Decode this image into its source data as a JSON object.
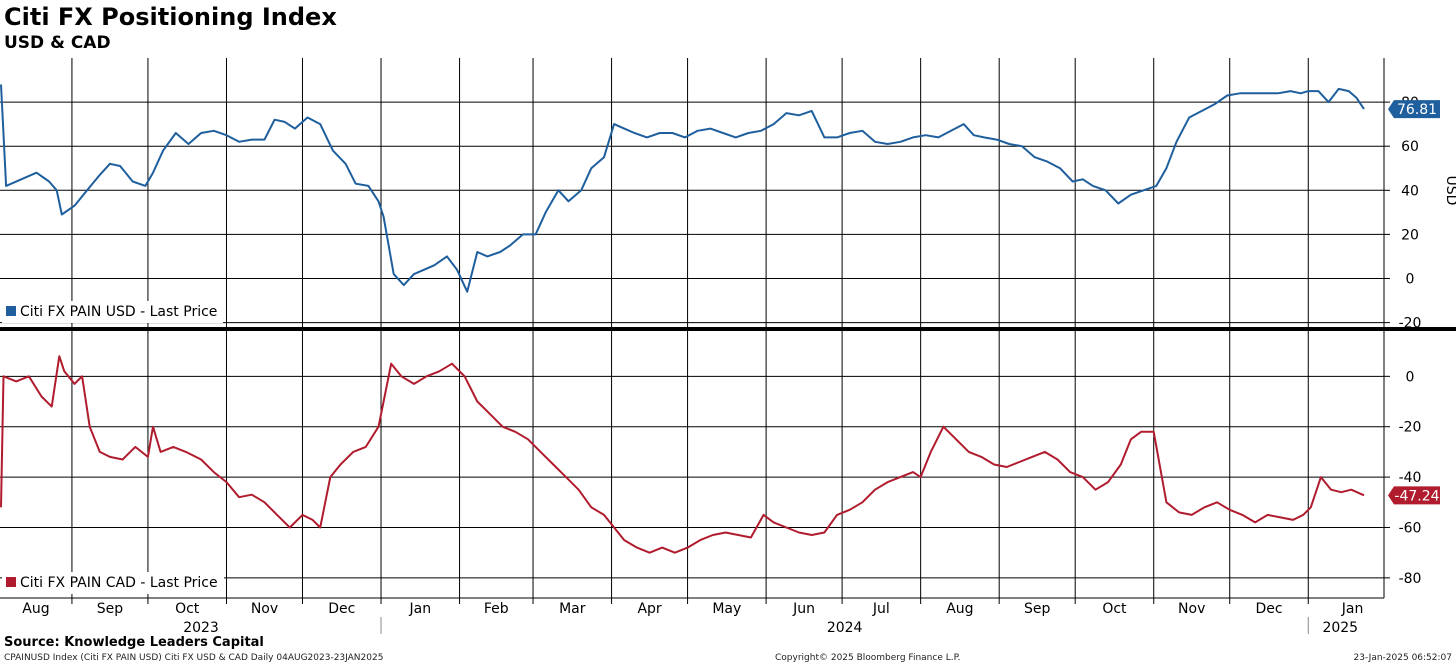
{
  "title": "Citi FX Positioning Index",
  "subtitle": "USD & CAD",
  "source": "Source: Knowledge Leaders Capital",
  "footer": {
    "left": "CPAINUSD Index (Citi FX PAIN USD) Citi FX USD & CAD  Daily 04AUG2023-23JAN2025",
    "center": "Copyright© 2025 Bloomberg Finance L.P.",
    "right": "23-Jan-2025 06:52:07"
  },
  "x_axis": {
    "months": [
      "Aug",
      "Sep",
      "Oct",
      "Nov",
      "Dec",
      "Jan",
      "Feb",
      "Mar",
      "Apr",
      "May",
      "Jun",
      "Jul",
      "Aug",
      "Sep",
      "Oct",
      "Nov",
      "Dec",
      "Jan"
    ],
    "years": [
      "2023",
      "2024",
      "2025"
    ]
  },
  "chart_data": [
    {
      "type": "line",
      "panel": "top",
      "ylabel": "USD",
      "ylim": [
        -22,
        100
      ],
      "yticks": [
        -20,
        0,
        20,
        40,
        60,
        80
      ],
      "ytick_labels": [
        "-20",
        "0",
        "20",
        "40",
        "60",
        "80"
      ],
      "grid": true,
      "last_value_label": "76.81",
      "color": "#1f5f9e",
      "series": [
        {
          "name": "Citi FX PAIN USD - Last Price",
          "x": [
            "2023-08-04",
            "2023-08-06",
            "2023-08-12",
            "2023-08-18",
            "2023-08-23",
            "2023-08-26",
            "2023-08-28",
            "2023-09-02",
            "2023-09-07",
            "2023-09-12",
            "2023-09-16",
            "2023-09-20",
            "2023-09-25",
            "2023-09-30",
            "2023-10-03",
            "2023-10-07",
            "2023-10-12",
            "2023-10-17",
            "2023-10-22",
            "2023-10-27",
            "2023-11-01",
            "2023-11-06",
            "2023-11-11",
            "2023-11-16",
            "2023-11-20",
            "2023-11-24",
            "2023-11-28",
            "2023-12-03",
            "2023-12-08",
            "2023-12-13",
            "2023-12-18",
            "2023-12-22",
            "2023-12-27",
            "2023-12-31",
            "2024-01-02",
            "2024-01-06",
            "2024-01-10",
            "2024-01-14",
            "2024-01-18",
            "2024-01-22",
            "2024-01-27",
            "2024-01-31",
            "2024-02-04",
            "2024-02-08",
            "2024-02-12",
            "2024-02-17",
            "2024-02-21",
            "2024-02-26",
            "2024-03-02",
            "2024-03-06",
            "2024-03-11",
            "2024-03-15",
            "2024-03-20",
            "2024-03-24",
            "2024-03-29",
            "2024-04-02",
            "2024-04-06",
            "2024-04-10",
            "2024-04-15",
            "2024-04-20",
            "2024-04-25",
            "2024-04-30",
            "2024-05-05",
            "2024-05-10",
            "2024-05-15",
            "2024-05-20",
            "2024-05-25",
            "2024-05-30",
            "2024-06-04",
            "2024-06-09",
            "2024-06-14",
            "2024-06-19",
            "2024-06-24",
            "2024-06-29",
            "2024-07-04",
            "2024-07-09",
            "2024-07-14",
            "2024-07-19",
            "2024-07-24",
            "2024-07-29",
            "2024-08-03",
            "2024-08-08",
            "2024-08-13",
            "2024-08-18",
            "2024-08-22",
            "2024-08-26",
            "2024-08-31",
            "2024-09-05",
            "2024-09-10",
            "2024-09-15",
            "2024-09-20",
            "2024-09-25",
            "2024-09-30",
            "2024-10-04",
            "2024-10-08",
            "2024-10-13",
            "2024-10-18",
            "2024-10-23",
            "2024-10-28",
            "2024-11-02",
            "2024-11-06",
            "2024-11-10",
            "2024-11-15",
            "2024-11-20",
            "2024-11-25",
            "2024-11-30",
            "2024-12-05",
            "2024-12-10",
            "2024-12-15",
            "2024-12-20",
            "2024-12-25",
            "2024-12-29",
            "2025-01-01",
            "2025-01-05",
            "2025-01-09",
            "2025-01-13",
            "2025-01-17",
            "2025-01-20",
            "2025-01-23"
          ],
          "values": [
            88,
            42,
            45,
            48,
            44,
            40,
            29,
            33,
            40,
            47,
            52,
            51,
            44,
            42,
            48,
            58,
            66,
            61,
            66,
            67,
            65,
            62,
            63,
            63,
            72,
            71,
            68,
            73,
            70,
            58,
            52,
            43,
            42,
            35,
            28,
            2,
            -3,
            2,
            4,
            6,
            10,
            4,
            -6,
            12,
            10,
            12,
            15,
            20,
            20,
            30,
            40,
            35,
            40,
            50,
            55,
            70,
            68,
            66,
            64,
            66,
            66,
            64,
            67,
            68,
            66,
            64,
            66,
            67,
            70,
            75,
            74,
            76,
            64,
            64,
            66,
            67,
            62,
            61,
            62,
            64,
            65,
            64,
            67,
            70,
            65,
            64,
            63,
            61,
            60,
            55,
            53,
            50,
            44,
            45,
            42,
            40,
            34,
            38,
            40,
            42,
            50,
            62,
            73,
            76,
            79,
            83,
            84,
            84,
            84,
            84,
            85,
            84,
            85,
            85,
            80,
            86,
            85,
            82,
            76.81
          ]
        }
      ]
    },
    {
      "type": "line",
      "panel": "bottom",
      "ylabel": "",
      "ylim": [
        -88,
        18
      ],
      "yticks": [
        -80,
        -60,
        -40,
        -20,
        0
      ],
      "ytick_labels": [
        "-80",
        "-60",
        "-40",
        "-20",
        "0"
      ],
      "grid": true,
      "last_value_label": "-47.24",
      "color": "#b01c2e",
      "series": [
        {
          "name": "Citi FX PAIN CAD - Last Price",
          "x": [
            "2023-08-04",
            "2023-08-05",
            "2023-08-10",
            "2023-08-15",
            "2023-08-20",
            "2023-08-24",
            "2023-08-27",
            "2023-08-29",
            "2023-09-02",
            "2023-09-05",
            "2023-09-08",
            "2023-09-12",
            "2023-09-16",
            "2023-09-21",
            "2023-09-26",
            "2023-10-01",
            "2023-10-03",
            "2023-10-06",
            "2023-10-11",
            "2023-10-16",
            "2023-10-22",
            "2023-10-27",
            "2023-11-01",
            "2023-11-06",
            "2023-11-11",
            "2023-11-16",
            "2023-11-21",
            "2023-11-26",
            "2023-12-01",
            "2023-12-05",
            "2023-12-08",
            "2023-12-12",
            "2023-12-16",
            "2023-12-21",
            "2023-12-26",
            "2023-12-31",
            "2024-01-02",
            "2024-01-05",
            "2024-01-09",
            "2024-01-14",
            "2024-01-19",
            "2024-01-24",
            "2024-01-29",
            "2024-02-03",
            "2024-02-08",
            "2024-02-13",
            "2024-02-18",
            "2024-02-23",
            "2024-02-28",
            "2024-03-04",
            "2024-03-09",
            "2024-03-14",
            "2024-03-19",
            "2024-03-24",
            "2024-03-29",
            "2024-04-02",
            "2024-04-06",
            "2024-04-11",
            "2024-04-16",
            "2024-04-21",
            "2024-04-26",
            "2024-05-01",
            "2024-05-06",
            "2024-05-11",
            "2024-05-16",
            "2024-05-21",
            "2024-05-26",
            "2024-05-31",
            "2024-06-04",
            "2024-06-09",
            "2024-06-14",
            "2024-06-19",
            "2024-06-24",
            "2024-06-29",
            "2024-07-04",
            "2024-07-09",
            "2024-07-14",
            "2024-07-19",
            "2024-07-24",
            "2024-07-29",
            "2024-08-01",
            "2024-08-05",
            "2024-08-10",
            "2024-08-15",
            "2024-08-20",
            "2024-08-25",
            "2024-08-30",
            "2024-09-04",
            "2024-09-09",
            "2024-09-14",
            "2024-09-19",
            "2024-09-24",
            "2024-09-29",
            "2024-10-04",
            "2024-10-09",
            "2024-10-14",
            "2024-10-19",
            "2024-10-23",
            "2024-10-27",
            "2024-11-01",
            "2024-11-06",
            "2024-11-11",
            "2024-11-16",
            "2024-11-21",
            "2024-11-26",
            "2024-12-01",
            "2024-12-06",
            "2024-12-11",
            "2024-12-16",
            "2024-12-21",
            "2024-12-26",
            "2024-12-30",
            "2025-01-02",
            "2025-01-06",
            "2025-01-10",
            "2025-01-14",
            "2025-01-18",
            "2025-01-23"
          ],
          "values": [
            -52,
            0,
            -2,
            0,
            -8,
            -12,
            8,
            2,
            -3,
            0,
            -20,
            -30,
            -32,
            -33,
            -28,
            -32,
            -20,
            -30,
            -28,
            -30,
            -33,
            -38,
            -42,
            -48,
            -47,
            -50,
            -55,
            -60,
            -55,
            -57,
            -60,
            -40,
            -35,
            -30,
            -28,
            -20,
            -10,
            5,
            0,
            -3,
            0,
            2,
            5,
            0,
            -10,
            -15,
            -20,
            -22,
            -25,
            -30,
            -35,
            -40,
            -45,
            -52,
            -55,
            -60,
            -65,
            -68,
            -70,
            -68,
            -70,
            -68,
            -65,
            -63,
            -62,
            -63,
            -64,
            -55,
            -58,
            -60,
            -62,
            -63,
            -62,
            -55,
            -53,
            -50,
            -45,
            -42,
            -40,
            -38,
            -40,
            -30,
            -20,
            -25,
            -30,
            -32,
            -35,
            -36,
            -34,
            -32,
            -30,
            -33,
            -38,
            -40,
            -45,
            -42,
            -35,
            -25,
            -22,
            -22,
            -50,
            -54,
            -55,
            -52,
            -50,
            -53,
            -55,
            -58,
            -55,
            -56,
            -57,
            -55,
            -52,
            -40,
            -45,
            -46,
            -45,
            -47.24
          ]
        }
      ]
    }
  ]
}
